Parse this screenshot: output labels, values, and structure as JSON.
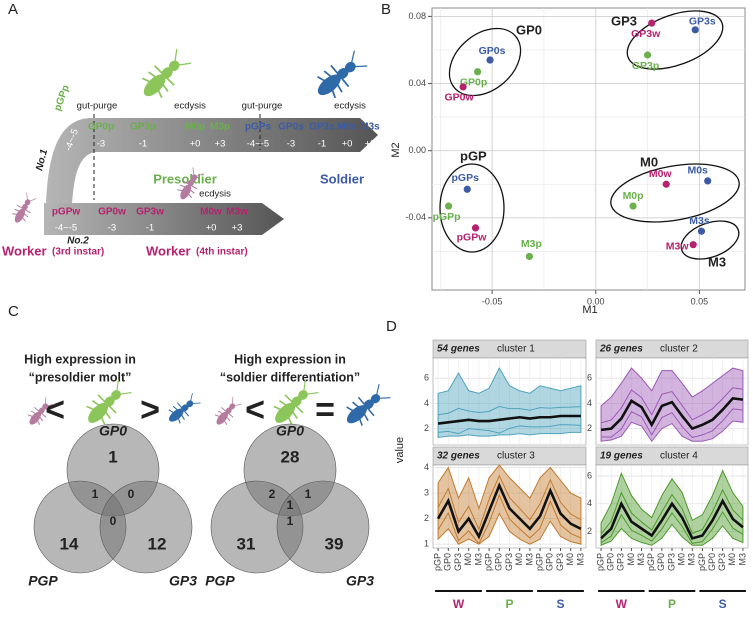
{
  "labels": {
    "a": "A",
    "b": "B",
    "c": "C",
    "d": "D"
  },
  "panel_a": {
    "events": [
      "gut-purge",
      "ecdysis",
      "gut-purge",
      "ecdysis",
      "ecdysis"
    ],
    "castes": {
      "presoldier": "Presoldier",
      "soldier": "Soldier",
      "worker_3": "Worker",
      "worker_3_stage": "(3rd instar)",
      "worker_4": "Worker",
      "worker_4_stage": "(4th instar)",
      "route_1": "No.1",
      "route_2": "No.2"
    },
    "upper_stages": [
      "pGPp",
      "GP0p",
      "GP3p",
      "M0p",
      "M3p",
      "pGPs",
      "GP0s",
      "GP3s",
      "M0s",
      "M3s"
    ],
    "upper_days": [
      "-4~-5",
      "-3",
      "-1",
      "+0",
      "+3",
      "-4~-5",
      "-3",
      "-1",
      "+0",
      "+3"
    ],
    "lower_stages": [
      "pGPw",
      "GP0w",
      "GP3w",
      "M0w",
      "M3w"
    ],
    "lower_days": [
      "-4~-5",
      "-3",
      "-1",
      "+0",
      "+3"
    ]
  },
  "chart_data": [
    {
      "type": "scatter",
      "xlabel": "M1",
      "ylabel": "M2",
      "xlim": [
        -0.079,
        0.072
      ],
      "ylim": [
        -0.083,
        0.085
      ],
      "xticks": [
        -0.05,
        {
          "value": 0,
          "label": "0.00"
        },
        0.05
      ],
      "yticks": [
        -0.04,
        {
          "value": 0,
          "label": "0.00"
        },
        0.04,
        0.08
      ],
      "grid": true,
      "groups": [
        "GP0",
        "GP3",
        "pGP",
        "M0",
        "M3"
      ],
      "points": [
        {
          "label": "GP0s",
          "x": -0.051,
          "y": 0.054,
          "color": "#3b5ba5"
        },
        {
          "label": "GP0p",
          "x": -0.057,
          "y": 0.047,
          "color": "#6ab04c"
        },
        {
          "label": "GP0w",
          "x": -0.064,
          "y": 0.038,
          "color": "#b5226e"
        },
        {
          "label": "GP3w",
          "x": 0.027,
          "y": 0.076,
          "color": "#b5226e"
        },
        {
          "label": "GP3s",
          "x": 0.048,
          "y": 0.072,
          "color": "#3b5ba5"
        },
        {
          "label": "GP3p",
          "x": 0.025,
          "y": 0.057,
          "color": "#6ab04c"
        },
        {
          "label": "pGPs",
          "x": -0.062,
          "y": -0.023,
          "color": "#3b5ba5"
        },
        {
          "label": "pGPp",
          "x": -0.071,
          "y": -0.033,
          "color": "#6ab04c"
        },
        {
          "label": "pGPw",
          "x": -0.058,
          "y": -0.046,
          "color": "#b5226e"
        },
        {
          "label": "M0w",
          "x": 0.034,
          "y": -0.02,
          "color": "#b5226e"
        },
        {
          "label": "M0s",
          "x": 0.054,
          "y": -0.018,
          "color": "#3b5ba5"
        },
        {
          "label": "M0p",
          "x": 0.018,
          "y": -0.033,
          "color": "#6ab04c"
        },
        {
          "label": "M3s",
          "x": 0.051,
          "y": -0.048,
          "color": "#3b5ba5"
        },
        {
          "label": "M3w",
          "x": 0.047,
          "y": -0.056,
          "color": "#b5226e"
        },
        {
          "label": "M3p",
          "x": -0.032,
          "y": -0.063,
          "color": "#6ab04c"
        }
      ]
    },
    {
      "type": "line",
      "count": "54 genes",
      "title": "cluster 1",
      "color": "#4fa3bd",
      "ylim": [
        0.7,
        7.6
      ],
      "yticks": [
        2,
        4,
        6
      ],
      "values": [
        2.4,
        2.5,
        2.6,
        2.7,
        2.6,
        2.6,
        2.7,
        2.8,
        2.9,
        2.8,
        2.9,
        2.9,
        3.0,
        3.0,
        3.0
      ],
      "low": [
        1.3,
        1.4,
        1.4,
        1.5,
        1.4,
        1.4,
        1.5,
        1.5,
        1.6,
        1.5,
        1.6,
        1.6,
        1.6,
        1.7,
        1.7
      ],
      "high": [
        4.8,
        5.0,
        6.4,
        5.0,
        4.8,
        5.2,
        6.8,
        5.4,
        5.0,
        4.8,
        5.4,
        5.2,
        5.0,
        5.2,
        5.4
      ]
    },
    {
      "type": "line",
      "count": "26 genes",
      "title": "cluster 2",
      "color": "#9b59b6",
      "ylim": [
        0.7,
        7.6
      ],
      "yticks": [
        2,
        4,
        6
      ],
      "values": [
        1.9,
        2.0,
        2.8,
        4.2,
        3.7,
        2.3,
        3.8,
        4.1,
        3.0,
        2.0,
        2.3,
        2.7,
        3.5,
        4.4,
        4.3
      ],
      "low": [
        1.0,
        1.1,
        1.4,
        2.5,
        2.2,
        1.0,
        2.0,
        2.4,
        1.4,
        1.0,
        1.0,
        1.2,
        1.8,
        2.6,
        2.5
      ],
      "high": [
        3.8,
        4.5,
        5.6,
        6.8,
        6.0,
        5.0,
        6.6,
        6.6,
        5.6,
        4.5,
        5.0,
        5.6,
        6.2,
        6.8,
        6.6
      ]
    },
    {
      "type": "line",
      "count": "32 genes",
      "title": "cluster 3",
      "color": "#c27a2c",
      "ylim": [
        0.85,
        4.1
      ],
      "yticks": [
        1,
        2,
        3,
        4
      ],
      "values": [
        2.0,
        2.7,
        1.5,
        2.0,
        1.3,
        2.3,
        3.3,
        2.4,
        2.0,
        1.6,
        2.1,
        3.1,
        2.2,
        1.8,
        1.6
      ],
      "low": [
        1.2,
        1.6,
        1.0,
        1.2,
        1.0,
        1.3,
        2.2,
        1.5,
        1.2,
        1.0,
        1.2,
        1.9,
        1.3,
        1.1,
        1.0
      ],
      "high": [
        3.4,
        4.0,
        2.8,
        3.6,
        2.4,
        3.6,
        4.1,
        3.6,
        3.2,
        2.8,
        3.6,
        4.0,
        3.5,
        3.0,
        2.8
      ]
    },
    {
      "type": "line",
      "count": "19 genes",
      "title": "cluster 4",
      "color": "#4c9a2a",
      "ylim": [
        0.8,
        6.8
      ],
      "yticks": [
        2,
        4,
        6
      ],
      "values": [
        1.5,
        2.2,
        4.0,
        2.7,
        2.2,
        1.7,
        2.8,
        4.0,
        3.0,
        1.5,
        1.7,
        2.8,
        4.2,
        2.9,
        2.3
      ],
      "low": [
        1.0,
        1.3,
        2.2,
        1.5,
        1.2,
        1.0,
        1.5,
        2.5,
        1.6,
        1.0,
        1.0,
        1.5,
        2.4,
        1.5,
        1.2
      ],
      "high": [
        2.6,
        4.0,
        6.2,
        4.6,
        3.6,
        3.0,
        4.6,
        5.8,
        4.8,
        2.8,
        3.2,
        4.6,
        6.4,
        4.8,
        3.8
      ]
    }
  ],
  "panel_c": [
    {
      "title": "High expression in",
      "subtitle": "“presoldier molt”",
      "symbols": [
        "<",
        ">"
      ],
      "sets": [
        "GP0",
        "PGP",
        "GP3"
      ],
      "counts": {
        "gp0": 1,
        "pgp": 14,
        "gp3": 12,
        "gp0_pgp": 1,
        "gp0_gp3": 0,
        "pgp_gp3": 0
      }
    },
    {
      "title": "High expression in",
      "subtitle": "“soldier differentiation”",
      "symbols": [
        "<",
        "="
      ],
      "sets": [
        "GP0",
        "PGP",
        "GP3"
      ],
      "counts": {
        "gp0": 28,
        "pgp": 31,
        "gp3": 39,
        "gp0_pgp": 2,
        "gp0_gp3": 1,
        "all": 1,
        "pgp_gp3": 1
      }
    }
  ],
  "panel_d": {
    "ylabel": "value",
    "categories": [
      "pGP",
      "GP0",
      "GP3",
      "M0",
      "M3",
      "pGP",
      "GP0",
      "GP3",
      "M0",
      "M3",
      "pGP",
      "GP0",
      "GP3",
      "M0",
      "M3"
    ],
    "groups": [
      {
        "label": "W",
        "color": "#b5226e"
      },
      {
        "label": "P",
        "color": "#6ab04c"
      },
      {
        "label": "S",
        "color": "#3b5ba5"
      }
    ]
  }
}
